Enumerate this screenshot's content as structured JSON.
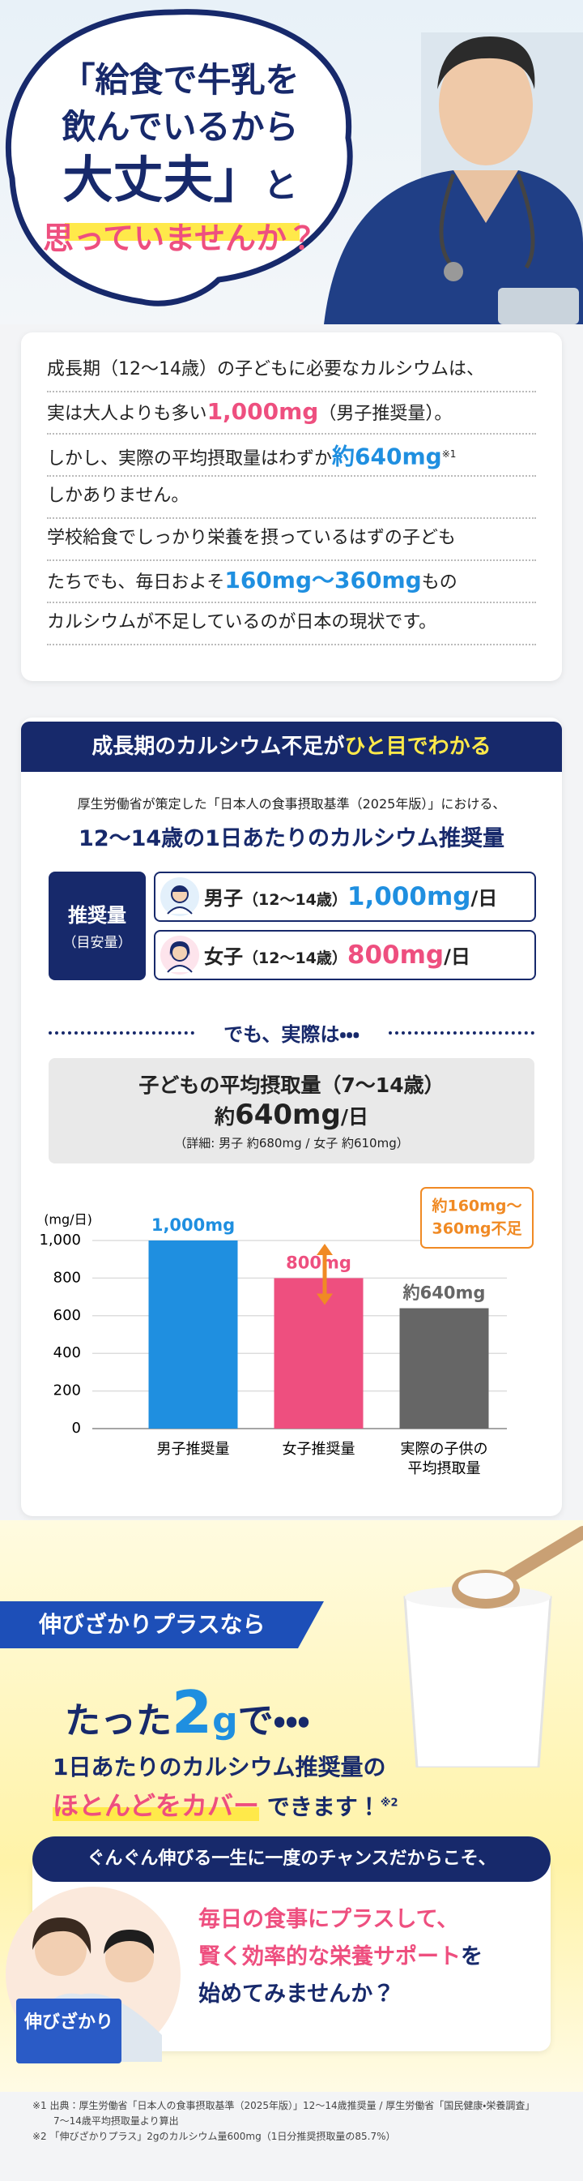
{
  "hero": {
    "line1": "「給食で牛乳を",
    "line2": "飲んでいるから",
    "line3_big": "大丈夫」",
    "line3_rest": "と",
    "line4": "思っていませんか？"
  },
  "intro": {
    "lines": [
      [
        "成長期（12〜14歳）の子どもに必要なカルシウムは、"
      ],
      [
        "実は大人よりも多い",
        "1,000mg",
        "（男子推奨量）。"
      ],
      [
        "しかし、実際の平均摂取量はわずか",
        "約640mg",
        "※1"
      ],
      [
        "しかありません。"
      ],
      [
        "学校給食でしっかり栄養を摂っているはずの子ども"
      ],
      [
        "たちでも、毎日およそ",
        "160mg〜360mg",
        "もの"
      ],
      [
        "カルシウムが不足しているのが日本の現状です。"
      ]
    ]
  },
  "summary": {
    "heading": [
      "成長期のカルシウム不足が",
      "ひと目でわかる"
    ],
    "source_line": "厚生労働省が策定した「日本人の食事摂取基準（2025年版）」における、",
    "subtitle": "12〜14歳の1日あたりのカルシウム推奨量",
    "table": {
      "label": "推奨量",
      "sublabel": "（目安量）",
      "rows": [
        {
          "who": "男子",
          "age": "（12〜14歳）",
          "amount": "1,000mg",
          "unit": "/日"
        },
        {
          "who": "女子",
          "age": "（12〜14歳）",
          "amount": "800mg",
          "unit": "/日"
        }
      ]
    },
    "divider": "でも、実際は・・・",
    "actual": {
      "title": "子どもの平均摂取量（7〜14歳）",
      "prefix": "約",
      "amount": "640mg",
      "unit": "/日",
      "detail": "（詳細: 男子 約680mg / 女子 約610mg）"
    }
  },
  "chart_data": {
    "type": "bar",
    "y_label": "(mg/日)",
    "categories": [
      "男子推奨量",
      "女子推奨量",
      "実際の子供の平均摂取量"
    ],
    "values": [
      1000,
      800,
      640
    ],
    "value_labels": [
      "1,000mg",
      "800mg",
      "約640mg"
    ],
    "colors": [
      "#1f8fe0",
      "#ee4f7f",
      "#666666"
    ],
    "ylim": [
      0,
      1000
    ],
    "yticks": [
      0,
      200,
      400,
      600,
      800,
      {
        "value": 1000,
        "label": "1,000"
      }
    ],
    "grid": true,
    "annotation": [
      "約160mg〜",
      "360mg不足"
    ]
  },
  "offer": {
    "banner": "伸びざかりプラスなら",
    "headline": [
      "たった",
      "2",
      "g",
      "で・・・"
    ],
    "line2": "1日あたりのカルシウム推奨量の",
    "highlight": "ほとんどをカバー",
    "tail": "できます！",
    "note": "※2",
    "chance": "ぐんぐん伸びる一生に一度のチャンスだからこそ、",
    "cta_lines": [
      [
        "毎日の食事にプラスして、"
      ],
      [
        "賢く効率的な栄養サポート",
        "を"
      ],
      [
        "始めてみませんか？"
      ]
    ],
    "product_name": "伸びざかり"
  },
  "footnotes": [
    "※1 出典：厚生労働省「日本人の食事摂取基準（2025年版）」12〜14歳推奨量 / 厚生労働省「国民健康・栄養調査」",
    "7〜14歳平均摂取量より算出",
    "※2 「伸びざかりプラス」2gのカルシウム量600mg（1日分推奨摂取量の85.7%）"
  ]
}
